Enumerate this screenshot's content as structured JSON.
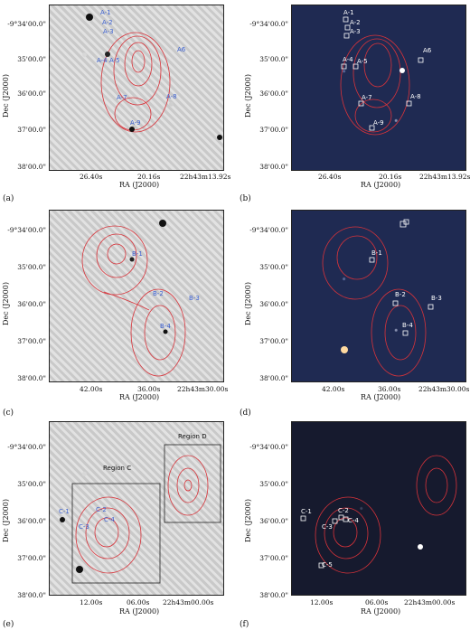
{
  "y_ticks": [
    "-9°34'00.0\"",
    "35'00.0\"",
    "36'00.0\"",
    "37'00.0\"",
    "38'00.0\""
  ],
  "y_label": "Dec (J2000)",
  "x_label": "RA (J2000)",
  "panels": [
    {
      "caption": "(a)",
      "x_ticks": [
        "26.40s",
        "20.16s",
        "22h43m13.92s"
      ],
      "labels": [
        "A-1",
        "A-2",
        "A-3",
        "A-4",
        "A-5",
        "A6",
        "A-7",
        "A-8",
        "A-9"
      ]
    },
    {
      "caption": "(b)",
      "x_ticks": [
        "26.40s",
        "20.16s",
        "22h43m13.92s"
      ],
      "labels": [
        "A-1",
        "A-2",
        "A-3",
        "A-4",
        "A-5",
        "A6",
        "A-7",
        "A-8",
        "A-9"
      ]
    },
    {
      "caption": "(c)",
      "x_ticks": [
        "42.00s",
        "36.00s",
        "22h43m30.00s"
      ],
      "labels": [
        "B-1",
        "B-2",
        "B-3",
        "B-4"
      ]
    },
    {
      "caption": "(d)",
      "x_ticks": [
        "42.00s",
        "36.00s",
        "22h43m30.00s"
      ],
      "labels": [
        "B-1",
        "B-2",
        "B-3",
        "B-4"
      ]
    },
    {
      "caption": "(e)",
      "x_ticks": [
        "12.00s",
        "06.00s",
        "22h43m00.00s"
      ],
      "labels": [
        "C-1",
        "C-2",
        "C-3",
        "C-4"
      ],
      "regions": [
        "Region C",
        "Region D"
      ]
    },
    {
      "caption": "(f)",
      "x_ticks": [
        "12.00s",
        "06.00s",
        "22h43m00.00s"
      ],
      "labels": [
        "C-1",
        "C-2",
        "C-3",
        "C-4",
        "C-5"
      ]
    }
  ]
}
